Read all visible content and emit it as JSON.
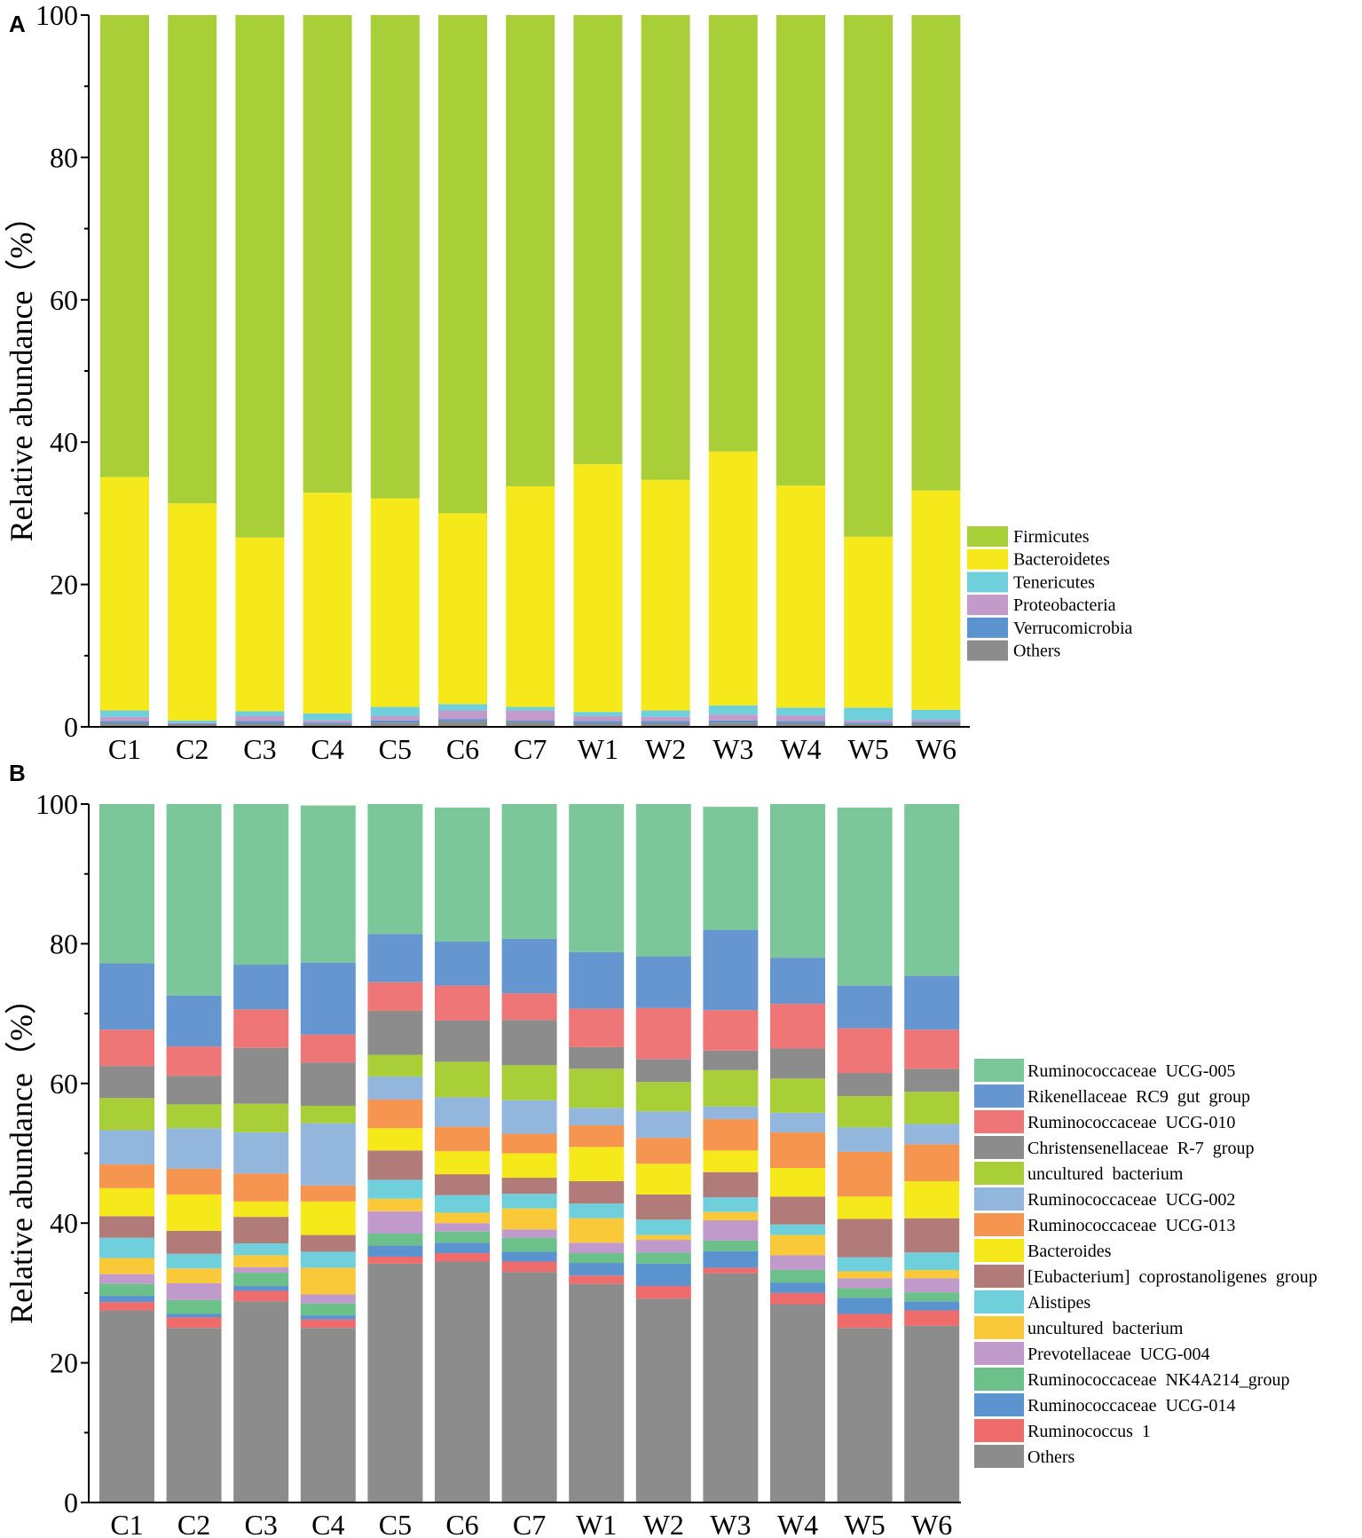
{
  "colors": {
    "Firmicutes": "#a9cf38",
    "Bacteroidetes": "#f5e91b",
    "Tenericutes": "#6fd0dc",
    "Proteobacteria": "#c39bcb",
    "Verrucomicrobia": "#5b93cf",
    "Others": "#8c8c8c",
    "Ruminococcaceae  UCG-005": "#7bc79a",
    "Rikenellaceae  RC9  gut  group": "#6596cf",
    "Ruminococcaceae  UCG-010": "#ef7676",
    "Christensenellaceae  R-7  group": "#8c8c8c",
    "uncultured  bacterium (green)": "#a9cf38",
    "Ruminococcaceae  UCG-002": "#92b6dc",
    "Ruminococcaceae  UCG-013": "#f5954f",
    "Bacteroides": "#f5e91b",
    "[Eubacterium]  coprostanoligenes  group": "#b07b78",
    "Alistipes": "#6fd0dc",
    "uncultured  bacterium (orange)": "#f9c93a",
    "Prevotellaceae  UCG-004": "#bf9acb",
    "Ruminococcaceae  NK4A214_group": "#6cc08a",
    "Ruminococcaceae  UCG-014": "#5b93cf",
    "Ruminococcus  1": "#ef6c6c",
    "Others (B)": "#8c8c8c"
  },
  "chart_data": [
    {
      "panel": "A",
      "type": "bar",
      "stacked": true,
      "title": "",
      "xlabel": "",
      "ylabel": "Relative abundance（%）",
      "ylim": [
        0,
        100
      ],
      "yticks": [
        0,
        20,
        40,
        60,
        80,
        100
      ],
      "categories": [
        "C1",
        "C2",
        "C3",
        "C4",
        "C5",
        "C6",
        "C7",
        "W1",
        "W2",
        "W3",
        "W4",
        "W5",
        "W6"
      ],
      "legend_position": "right",
      "series": [
        {
          "name": "Others",
          "color_key": "Others",
          "values": [
            0.5,
            0.4,
            0.5,
            0.4,
            0.6,
            0.8,
            0.7,
            0.5,
            0.5,
            0.6,
            0.5,
            0.4,
            0.5
          ]
        },
        {
          "name": "Verrucomicrobia",
          "color_key": "Verrucomicrobia",
          "values": [
            0.3,
            0.1,
            0.3,
            0.2,
            0.3,
            0.3,
            0.2,
            0.3,
            0.3,
            0.3,
            0.3,
            0.2,
            0.2
          ]
        },
        {
          "name": "Proteobacteria",
          "color_key": "Proteobacteria",
          "values": [
            0.6,
            0.1,
            0.7,
            0.3,
            0.6,
            1.2,
            1.4,
            0.7,
            0.6,
            0.8,
            0.8,
            0.3,
            0.3
          ]
        },
        {
          "name": "Tenericutes",
          "color_key": "Tenericutes",
          "values": [
            0.9,
            0.3,
            0.7,
            1.0,
            1.3,
            0.9,
            0.5,
            0.6,
            0.9,
            1.3,
            1.1,
            1.8,
            1.4
          ]
        },
        {
          "name": "Bacteroidetes",
          "color_key": "Bacteroidetes",
          "values": [
            32.8,
            30.5,
            24.4,
            31.0,
            29.3,
            26.8,
            31.0,
            34.8,
            32.4,
            35.7,
            31.2,
            24.0,
            30.8
          ]
        },
        {
          "name": "Firmicutes",
          "color_key": "Firmicutes",
          "values": [
            64.9,
            68.6,
            73.4,
            67.1,
            67.9,
            70.0,
            66.2,
            63.1,
            65.3,
            61.3,
            66.1,
            73.3,
            66.8
          ]
        }
      ],
      "legend_order": [
        "Firmicutes",
        "Bacteroidetes",
        "Tenericutes",
        "Proteobacteria",
        "Verrucomicrobia",
        "Others"
      ]
    },
    {
      "panel": "B",
      "type": "bar",
      "stacked": true,
      "title": "",
      "xlabel": "",
      "ylabel": "Relative abundance（%）",
      "ylim": [
        0,
        100
      ],
      "yticks": [
        0,
        20,
        40,
        60,
        80,
        100
      ],
      "categories": [
        "C1",
        "C2",
        "C3",
        "C4",
        "C5",
        "C6",
        "C7",
        "W1",
        "W2",
        "W3",
        "W4",
        "W5",
        "W6"
      ],
      "legend_position": "right",
      "series": [
        {
          "name": "Others",
          "color_key": "Others (B)",
          "values": [
            27.5,
            25.0,
            28.8,
            25.0,
            34.2,
            34.5,
            33.0,
            31.3,
            29.2,
            32.8,
            28.4,
            25.0,
            25.3
          ]
        },
        {
          "name": "Ruminococcus  1",
          "color_key": "Ruminococcus  1",
          "values": [
            1.2,
            1.5,
            1.5,
            1.2,
            1.0,
            1.2,
            1.5,
            1.2,
            1.8,
            0.8,
            1.6,
            2.0,
            2.2
          ]
        },
        {
          "name": "Ruminococcaceae  UCG-014",
          "color_key": "Ruminococcaceae  UCG-014",
          "values": [
            0.9,
            0.5,
            0.7,
            0.6,
            1.6,
            1.5,
            1.4,
            1.8,
            3.2,
            2.4,
            1.5,
            2.3,
            1.3
          ]
        },
        {
          "name": "Ruminococcaceae  NK4A214_group",
          "color_key": "Ruminococcaceae  NK4A214_group",
          "values": [
            1.7,
            2.0,
            1.9,
            1.7,
            1.7,
            1.6,
            2.0,
            1.4,
            1.6,
            1.5,
            1.8,
            1.4,
            1.3
          ]
        },
        {
          "name": "Prevotellaceae  UCG-004",
          "color_key": "Prevotellaceae  UCG-004",
          "values": [
            1.4,
            2.4,
            0.8,
            1.3,
            3.2,
            1.2,
            1.2,
            1.5,
            1.8,
            2.9,
            2.1,
            1.4,
            2.0
          ]
        },
        {
          "name": "uncultured  bacterium",
          "color_key": "uncultured  bacterium (orange)",
          "values": [
            2.3,
            2.1,
            1.7,
            3.8,
            1.8,
            1.5,
            3.0,
            3.5,
            0.7,
            1.2,
            2.9,
            1.0,
            1.2
          ]
        },
        {
          "name": "Alistipes",
          "color_key": "Alistipes",
          "values": [
            2.9,
            2.1,
            1.7,
            2.3,
            2.7,
            2.5,
            2.1,
            2.1,
            2.2,
            2.1,
            1.5,
            2.0,
            2.5
          ]
        },
        {
          "name": "[Eubacterium]  coprostanoligenes  group",
          "color_key": "[Eubacterium]  coprostanoligenes  group",
          "values": [
            3.1,
            3.3,
            3.8,
            2.4,
            4.2,
            3.0,
            2.3,
            3.2,
            3.6,
            3.6,
            4.0,
            5.5,
            4.9
          ]
        },
        {
          "name": "Bacteroides",
          "color_key": "Bacteroides",
          "values": [
            4.0,
            5.2,
            2.2,
            4.8,
            3.2,
            3.3,
            3.5,
            4.9,
            4.4,
            3.1,
            4.1,
            3.2,
            5.3
          ]
        },
        {
          "name": "Ruminococcaceae  UCG-013",
          "color_key": "Ruminococcaceae  UCG-013",
          "values": [
            3.4,
            3.7,
            4.0,
            2.3,
            4.1,
            3.5,
            2.8,
            3.1,
            3.7,
            4.5,
            5.1,
            6.4,
            5.3
          ]
        },
        {
          "name": "Ruminococcaceae  UCG-002",
          "color_key": "Ruminococcaceae  UCG-002",
          "values": [
            4.9,
            5.8,
            5.9,
            8.9,
            3.3,
            4.2,
            4.8,
            2.5,
            3.8,
            1.8,
            2.8,
            3.5,
            2.9
          ]
        },
        {
          "name": "uncultured  bacterium",
          "color_key": "uncultured  bacterium (green)",
          "values": [
            4.6,
            3.4,
            4.1,
            2.5,
            3.1,
            5.1,
            5.0,
            5.6,
            4.2,
            5.2,
            4.9,
            4.5,
            4.6
          ]
        },
        {
          "name": "Christensenellaceae  R-7  group",
          "color_key": "Christensenellaceae  R-7  group",
          "values": [
            4.6,
            4.1,
            8.0,
            6.2,
            6.3,
            5.9,
            6.5,
            3.1,
            3.3,
            2.8,
            4.3,
            3.3,
            3.3
          ]
        },
        {
          "name": "Ruminococcaceae  UCG-010",
          "color_key": "Ruminococcaceae  UCG-010",
          "values": [
            5.2,
            4.2,
            5.5,
            4.0,
            4.1,
            5.0,
            3.8,
            5.5,
            7.3,
            5.8,
            6.4,
            6.4,
            5.6
          ]
        },
        {
          "name": "Rikenellaceae  RC9  gut  group",
          "color_key": "Rikenellaceae  RC9  gut  group",
          "values": [
            9.5,
            7.3,
            6.4,
            10.3,
            6.9,
            6.3,
            7.8,
            8.1,
            7.4,
            11.5,
            6.6,
            6.1,
            7.7
          ]
        },
        {
          "name": "Ruminococcaceae  UCG-005",
          "color_key": "Ruminococcaceae  UCG-005",
          "values": [
            22.8,
            27.4,
            23.0,
            22.5,
            18.6,
            19.2,
            19.3,
            21.2,
            21.8,
            17.6,
            22.0,
            25.5,
            24.6
          ]
        }
      ],
      "legend_order": [
        "Ruminococcaceae  UCG-005",
        "Rikenellaceae  RC9  gut  group",
        "Ruminococcaceae  UCG-010",
        "Christensenellaceae  R-7  group",
        "uncultured  bacterium",
        "Ruminococcaceae  UCG-002",
        "Ruminococcaceae  UCG-013",
        "Bacteroides",
        "[Eubacterium]  coprostanoligenes  group",
        "Alistipes",
        "uncultured  bacterium",
        "Prevotellaceae  UCG-004",
        "Ruminococcaceae  NK4A214_group",
        "Ruminococcaceae  UCG-014",
        "Ruminococcus  1",
        "Others"
      ],
      "legend_color_keys": [
        "Ruminococcaceae  UCG-005",
        "Rikenellaceae  RC9  gut  group",
        "Ruminococcaceae  UCG-010",
        "Christensenellaceae  R-7  group",
        "uncultured  bacterium (green)",
        "Ruminococcaceae  UCG-002",
        "Ruminococcaceae  UCG-013",
        "Bacteroides",
        "[Eubacterium]  coprostanoligenes  group",
        "Alistipes",
        "uncultured  bacterium (orange)",
        "Prevotellaceae  UCG-004",
        "Ruminococcaceae  NK4A214_group",
        "Ruminococcaceae  UCG-014",
        "Ruminococcus  1",
        "Others (B)"
      ]
    }
  ]
}
